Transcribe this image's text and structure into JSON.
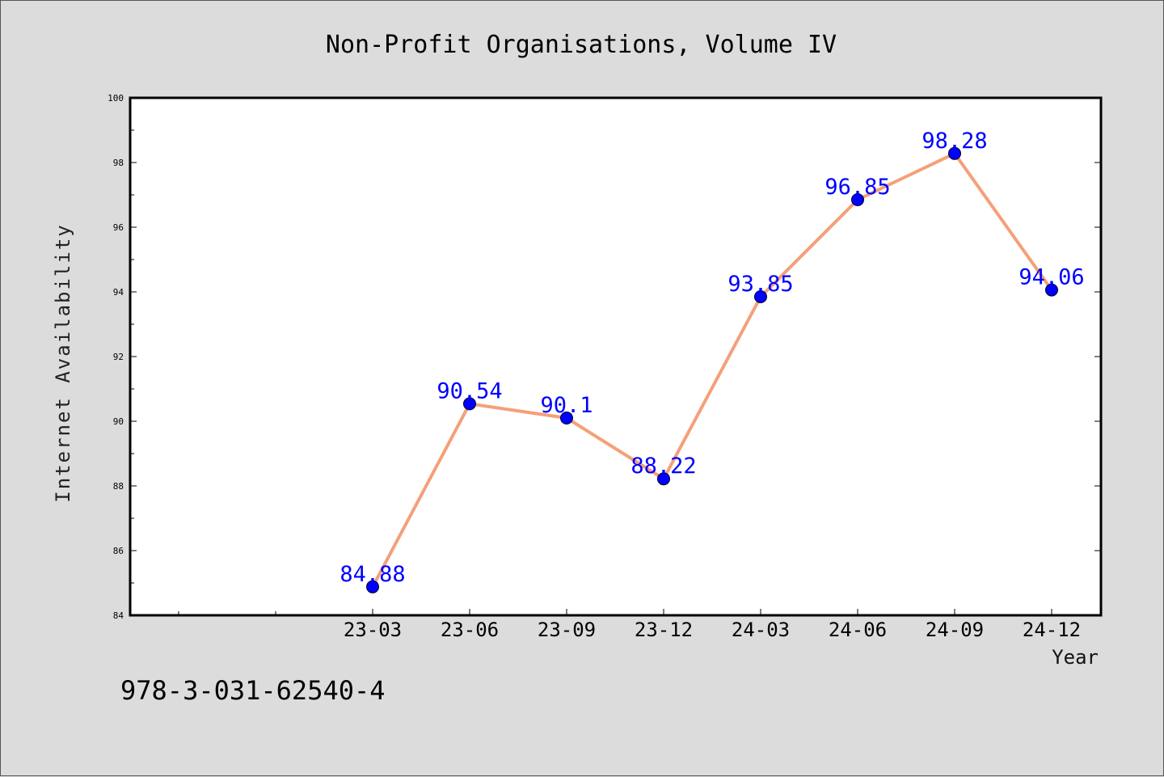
{
  "chart_data": {
    "type": "line",
    "title": "Non-Profit Organisations, Volume IV",
    "xlabel": "Year",
    "ylabel": "Internet Availability",
    "categories": [
      "23-03",
      "23-06",
      "23-09",
      "23-12",
      "24-03",
      "24-06",
      "24-09",
      "24-12"
    ],
    "values": [
      84.88,
      90.54,
      90.1,
      88.22,
      93.85,
      96.85,
      98.28,
      94.06
    ],
    "data_labels": [
      "84.88",
      "90.54",
      "90.1",
      "88.22",
      "93.85",
      "96.85",
      "98.28",
      "94.06"
    ],
    "ylim": [
      84,
      100
    ],
    "yticks": [
      "84",
      "86",
      "88",
      "90",
      "92",
      "94",
      "96",
      "98",
      "100"
    ],
    "grid": false,
    "line_color": "#f4a07a",
    "marker_color": "#0000ff",
    "label_color": "#0000ff"
  },
  "footer": {
    "isbn": "978-3-031-62540-4"
  }
}
